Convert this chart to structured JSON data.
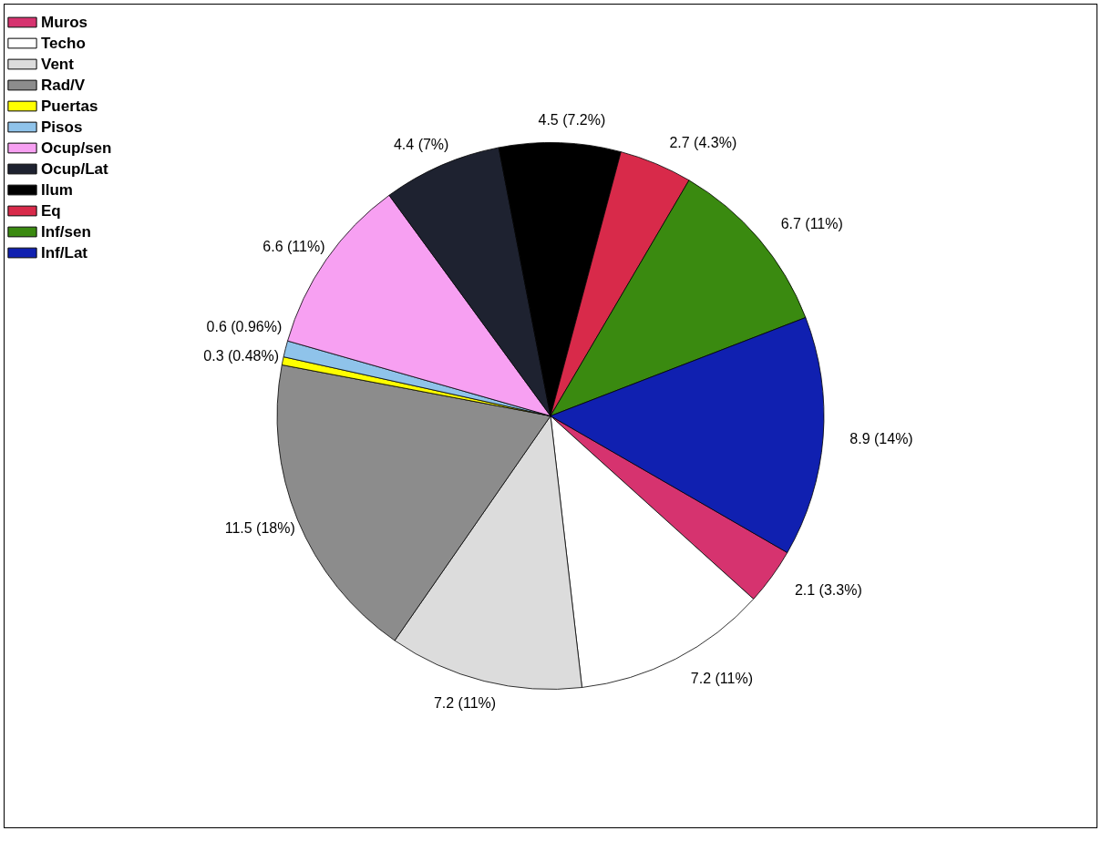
{
  "chart_data": {
    "type": "pie",
    "categories": [
      "Muros",
      "Techo",
      "Vent",
      "Rad/V",
      "Puertas",
      "Pisos",
      "Ocup/sen",
      "Ocup/Lat",
      "Ilum",
      "Eq",
      "Inf/sen",
      "Inf/Lat"
    ],
    "values": [
      2.1,
      7.2,
      7.2,
      11.5,
      0.3,
      0.6,
      6.6,
      4.4,
      4.5,
      2.7,
      6.7,
      8.9
    ],
    "colors": [
      "#d6336f",
      "#ffffff",
      "#dcdcdc",
      "#8c8c8c",
      "#ffff00",
      "#8fc3ea",
      "#f7a0f2",
      "#1e2230",
      "#000000",
      "#d82a4a",
      "#3a8a10",
      "#1020b0"
    ],
    "value_labels": [
      "2.1 (3.3%)",
      "7.2 (11%)",
      "7.2 (11%)",
      "11.5 (18%)",
      "0.3 (0.48%)",
      "0.6 (0.96%)",
      "6.6 (11%)",
      "4.4 (7%)",
      "4.5 (7.2%)",
      "2.7 (4.3%)",
      "6.7 (11%)",
      "8.9 (14%)"
    ],
    "legend": "top left"
  }
}
